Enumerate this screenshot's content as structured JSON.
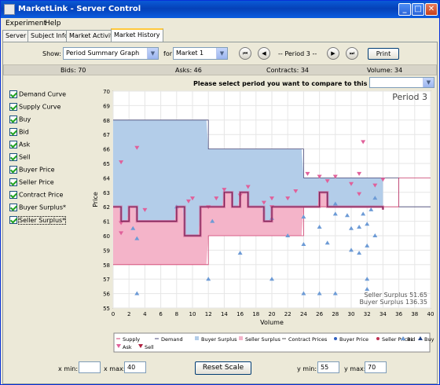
{
  "window": {
    "title": "MarketLink - Server Control"
  },
  "menu": [
    "Experiment",
    "Help"
  ],
  "tabs": [
    "Server",
    "Subject Info",
    "Market Activity",
    "Market History"
  ],
  "controls": {
    "show_label": "Show:",
    "graph_select": "Period Summary Graph",
    "for_label": "for",
    "market_select": "Market 1",
    "period_label": "-- Period 3 --",
    "print_label": "Print"
  },
  "status": {
    "bids": "Bids: 70",
    "asks": "Asks: 46",
    "contracts": "Contracts: 34",
    "volume": "Volume: 34"
  },
  "compare_prompt": "Please select period you want to compare to this period.",
  "checkboxes": [
    "Demand Curve",
    "Supply Curve",
    "Buy",
    "Bid",
    "Ask",
    "Sell",
    "Buyer Price",
    "Seller Price",
    "Contract Price",
    "Buyer Surplus*",
    "Seller Surplus*"
  ],
  "chart_data": {
    "type": "line",
    "title": "Period 3",
    "xlabel": "Volume",
    "ylabel": "Price",
    "xlim": [
      0,
      40
    ],
    "ylim": [
      55,
      70
    ],
    "xticks": [
      0,
      2,
      4,
      6,
      8,
      10,
      12,
      14,
      16,
      18,
      20,
      22,
      24,
      26,
      28,
      30,
      32,
      34,
      36,
      38,
      40
    ],
    "yticks": [
      55,
      56,
      57,
      58,
      59,
      60,
      61,
      62,
      63,
      64,
      65,
      66,
      67,
      68,
      69,
      70
    ],
    "grid": true,
    "demand_steps": [
      [
        0,
        68
      ],
      [
        12,
        68
      ],
      [
        12,
        66
      ],
      [
        24,
        66
      ],
      [
        24,
        64
      ],
      [
        36,
        64
      ],
      [
        36,
        62
      ],
      [
        40,
        62
      ]
    ],
    "supply_steps": [
      [
        0,
        58
      ],
      [
        12,
        58
      ],
      [
        12,
        60
      ],
      [
        24,
        60
      ],
      [
        24,
        62
      ],
      [
        36,
        62
      ],
      [
        36,
        64
      ],
      [
        40,
        64
      ]
    ],
    "contract_prices": [
      [
        0,
        62
      ],
      [
        1,
        61
      ],
      [
        2,
        62
      ],
      [
        3,
        61
      ],
      [
        4,
        61
      ],
      [
        5,
        61
      ],
      [
        6,
        61
      ],
      [
        7,
        61
      ],
      [
        8,
        62
      ],
      [
        9,
        60
      ],
      [
        10,
        60
      ],
      [
        11,
        62
      ],
      [
        12,
        62
      ],
      [
        13,
        62
      ],
      [
        14,
        63
      ],
      [
        15,
        62
      ],
      [
        16,
        63
      ],
      [
        17,
        62
      ],
      [
        18,
        62
      ],
      [
        19,
        61
      ],
      [
        20,
        62
      ],
      [
        21,
        62
      ],
      [
        22,
        62
      ],
      [
        23,
        62
      ],
      [
        24,
        62
      ],
      [
        25,
        62
      ],
      [
        26,
        63
      ],
      [
        27,
        62
      ],
      [
        28,
        62
      ],
      [
        29,
        62
      ],
      [
        30,
        62
      ],
      [
        31,
        62
      ],
      [
        32,
        62
      ],
      [
        33,
        62
      ],
      [
        34,
        61.8
      ]
    ],
    "bids": [
      [
        2.5,
        60.5
      ],
      [
        3,
        59.8
      ],
      [
        12,
        57
      ],
      [
        12.5,
        61
      ],
      [
        16,
        58.8
      ],
      [
        20,
        57
      ],
      [
        24,
        56
      ],
      [
        26,
        56
      ],
      [
        28,
        56
      ],
      [
        3,
        56
      ],
      [
        8,
        62
      ],
      [
        20,
        61.2
      ],
      [
        22,
        60
      ],
      [
        24,
        61.3
      ],
      [
        26,
        60.6
      ],
      [
        28,
        61.5
      ],
      [
        28,
        62.2
      ],
      [
        29.5,
        61.4
      ],
      [
        30,
        60.5
      ],
      [
        31,
        60.6
      ],
      [
        31.5,
        61.5
      ],
      [
        32,
        60.8
      ],
      [
        32,
        59.3
      ],
      [
        32,
        57
      ],
      [
        32,
        56.3
      ],
      [
        33,
        60
      ],
      [
        32.5,
        61.8
      ],
      [
        33,
        62.6
      ],
      [
        24,
        59.4
      ],
      [
        27,
        59.5
      ],
      [
        30,
        59
      ],
      [
        31,
        58.8
      ]
    ],
    "asks": [
      [
        1,
        65.1
      ],
      [
        3,
        66.1
      ],
      [
        4,
        61.8
      ],
      [
        1,
        60.9
      ],
      [
        1,
        60.2
      ],
      [
        9.5,
        62.4
      ],
      [
        10,
        62.6
      ],
      [
        12,
        62
      ],
      [
        13,
        62.6
      ],
      [
        14,
        63.2
      ],
      [
        16,
        62.8
      ],
      [
        17,
        63.4
      ],
      [
        19,
        62.3
      ],
      [
        20,
        62.6
      ],
      [
        22,
        62.6
      ],
      [
        23,
        63.1
      ],
      [
        24.5,
        64.3
      ],
      [
        26,
        64.1
      ],
      [
        27,
        63.8
      ],
      [
        28,
        64.1
      ],
      [
        30,
        63.6
      ],
      [
        31,
        64.3
      ],
      [
        31.5,
        66.5
      ],
      [
        31,
        62.9
      ],
      [
        33,
        63.5
      ],
      [
        34,
        63.9
      ],
      [
        20,
        62
      ]
    ],
    "seller_surplus_label": "Seller Surplus 51.65",
    "buyer_surplus_label": "Buyer Surplus 136.35",
    "colors": {
      "buyer_surplus": "#b3cde9",
      "seller_surplus": "#f4b4c9",
      "contract": "#7a2255",
      "contract_halo": "#d05a90",
      "bid": "#6d9bd6",
      "ask": "#e0609a",
      "demand": "#4a4a7a",
      "supply": "#d04070"
    },
    "legend": [
      "Supply",
      "Demand",
      "Buyer Surplus",
      "Seller Surplus",
      "Contract Prices",
      "Buyer Price",
      "Seller Prices",
      "Bid",
      "Buy",
      "Ask",
      "Sell"
    ]
  },
  "footer": {
    "xmin_label": "x min:",
    "xmin_value": "",
    "xmax_label": "x max:",
    "xmax_value": "40",
    "reset_label": "Reset Scale",
    "ymin_label": "y min:",
    "ymin_value": "55",
    "ymax_label": "y max:",
    "ymax_value": "70"
  }
}
